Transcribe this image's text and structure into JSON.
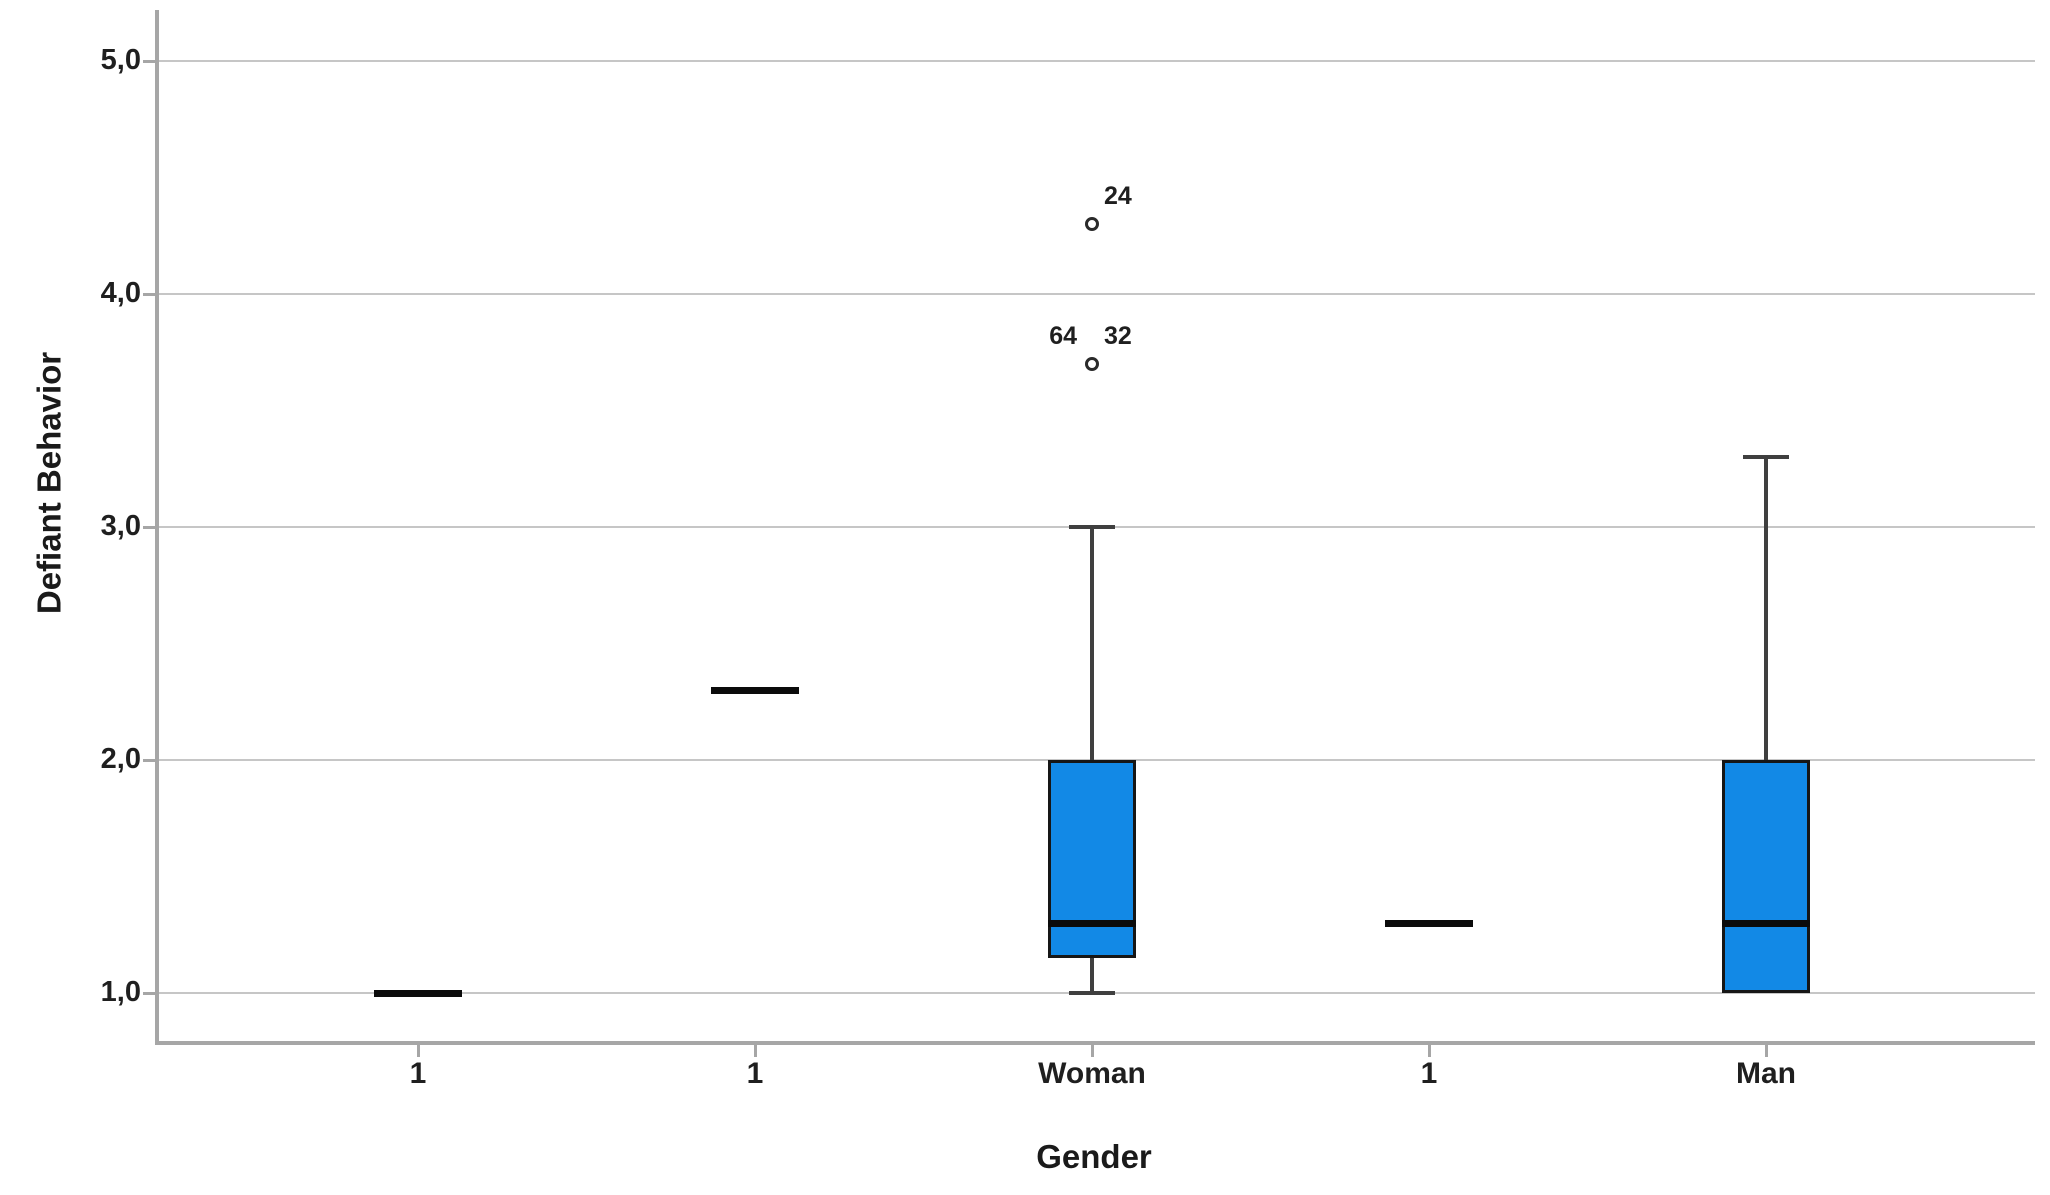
{
  "chart_data": {
    "type": "boxplot",
    "title": "",
    "xlabel": "Gender",
    "ylabel": "Defiant Behavior",
    "ylim": [
      0.78,
      5.2
    ],
    "yticks": [
      1.0,
      2.0,
      3.0,
      4.0,
      5.0
    ],
    "ytick_labels": [
      "1,0",
      "2,0",
      "3,0",
      "4,0",
      "5,0"
    ],
    "decimal_separator": ",",
    "grid": "horizontal-gridlines-on",
    "legend": "none",
    "categories": [
      "1",
      "1",
      "Woman",
      "1",
      "Man"
    ],
    "boxes": [
      {
        "category": "1",
        "type": "median-line",
        "median": 1.0
      },
      {
        "category": "1",
        "type": "median-line",
        "median": 2.3
      },
      {
        "category": "Woman",
        "type": "box",
        "q1": 1.15,
        "median": 1.3,
        "q3": 2.0,
        "whisker_low": 1.0,
        "whisker_high": 3.0,
        "outliers": [
          {
            "value": 3.7,
            "labels": [
              {
                "text": "64",
                "side": "left"
              },
              {
                "text": "32",
                "side": "right"
              }
            ]
          },
          {
            "value": 4.3,
            "labels": [
              {
                "text": "24",
                "side": "right"
              }
            ]
          }
        ]
      },
      {
        "category": "1",
        "type": "median-line",
        "median": 1.3
      },
      {
        "category": "Man",
        "type": "box",
        "q1": 1.0,
        "median": 1.3,
        "q3": 2.0,
        "whisker_low": null,
        "whisker_high": 3.3,
        "outliers": []
      }
    ],
    "colors": {
      "box_fill": "#1289e6",
      "box_border": "#161616",
      "median": "#0b0b0b",
      "whisker": "#3f3f3f",
      "gridline": "#c6c6c6",
      "axis": "#a6a6a6",
      "text": "#1f1f1f",
      "background": "#ffffff"
    }
  }
}
